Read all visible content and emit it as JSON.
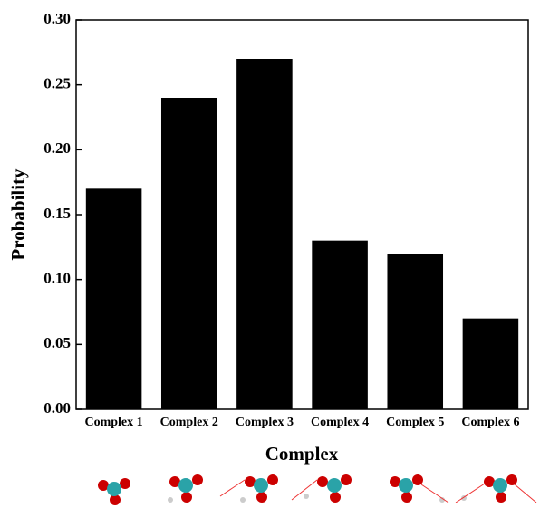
{
  "chart_data": {
    "type": "bar",
    "x_label": "Complex",
    "y_label": "Probability",
    "categories": [
      "Complex 1",
      "Complex 2",
      "Complex 3",
      "Complex 4",
      "Complex 5",
      "Complex 6"
    ],
    "values": [
      0.17,
      0.24,
      0.27,
      0.13,
      0.12,
      0.07
    ],
    "color": "#000000",
    "ylim": [
      0,
      0.3
    ],
    "yticks": [
      {
        "value": 0,
        "label": "0.00"
      },
      {
        "value": 0.05,
        "label": "0.05"
      },
      {
        "value": 0.1,
        "label": "0.10"
      },
      {
        "value": 0.15,
        "label": "0.15"
      },
      {
        "value": 0.2,
        "label": "0.20"
      },
      {
        "value": 0.25,
        "label": "0.25"
      },
      {
        "value": 0.3,
        "label": "0.30"
      }
    ],
    "grid": false
  }
}
